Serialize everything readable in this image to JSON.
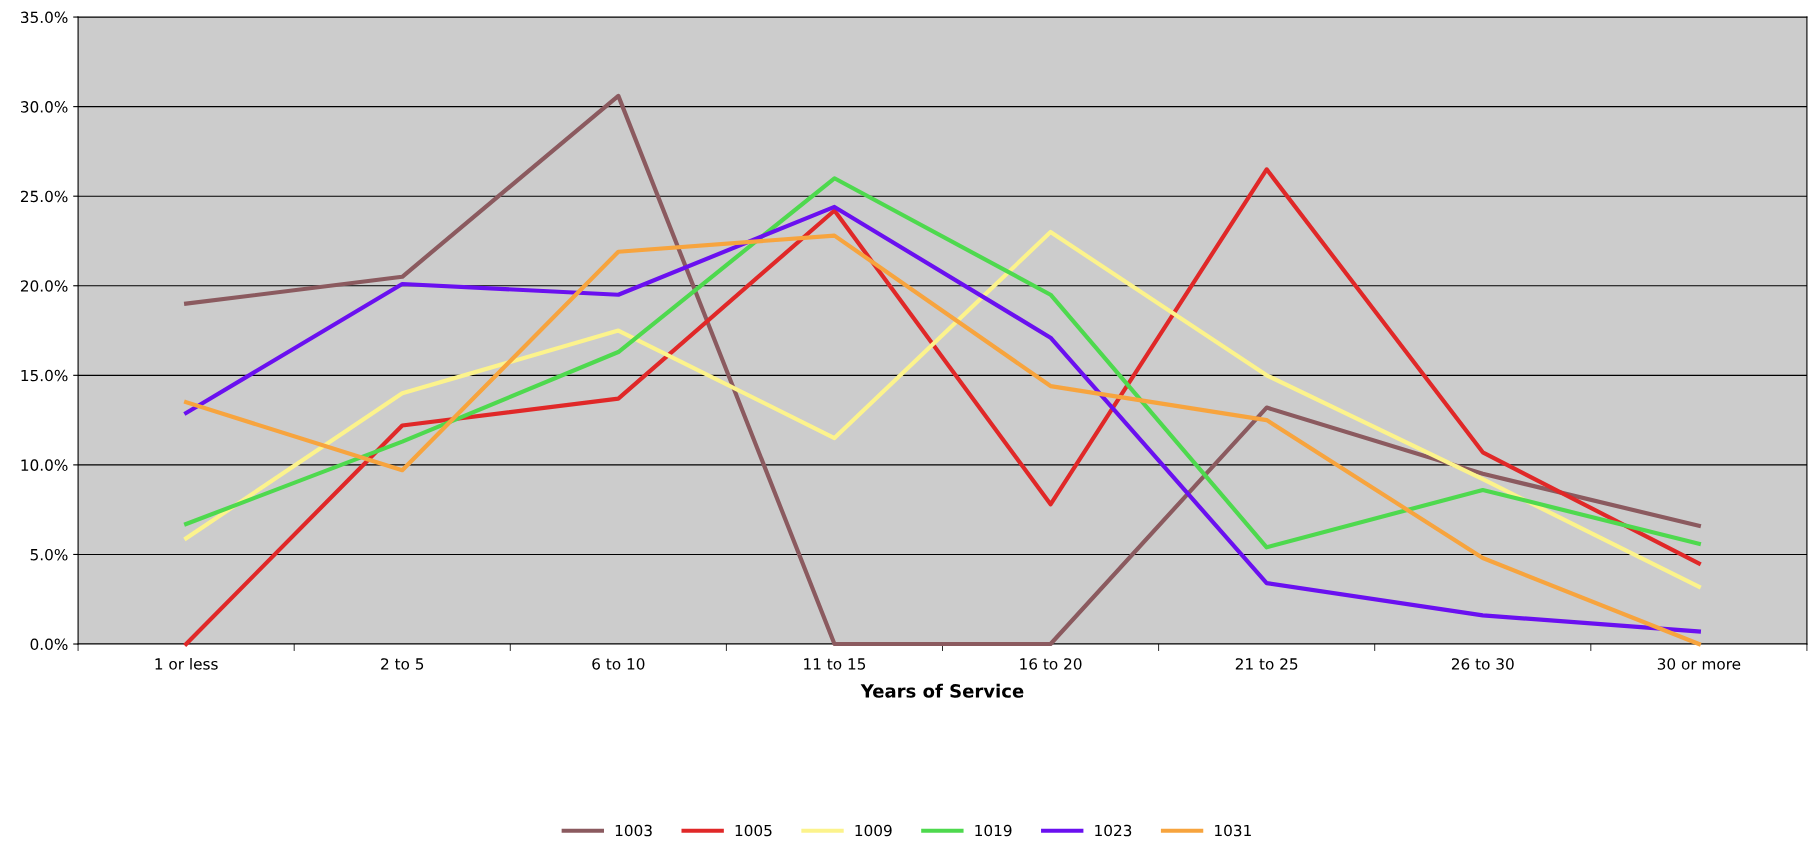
{
  "chart_data": {
    "type": "line",
    "xlabel": "Years of Service",
    "categories": [
      "1 or less",
      "2 to 5",
      "6 to 10",
      "11 to 15",
      "16 to 20",
      "21 to 25",
      "26 to 30",
      "30 or more"
    ],
    "series": [
      {
        "name": "1003",
        "color": "#8b5a5f",
        "values": [
          19.0,
          20.5,
          30.6,
          0.0,
          0.0,
          13.2,
          9.5,
          6.6
        ]
      },
      {
        "name": "1005",
        "color": "#e02828",
        "values": [
          0.0,
          12.2,
          13.7,
          24.2,
          7.8,
          26.5,
          10.7,
          4.5
        ]
      },
      {
        "name": "1009",
        "color": "#fcf38c",
        "values": [
          5.9,
          14.0,
          17.5,
          11.5,
          23.0,
          15.0,
          9.2,
          3.2
        ]
      },
      {
        "name": "1019",
        "color": "#4ed94e",
        "values": [
          6.7,
          11.3,
          16.3,
          26.0,
          19.5,
          5.4,
          8.6,
          5.6
        ]
      },
      {
        "name": "1023",
        "color": "#6a10f0",
        "values": [
          12.9,
          20.1,
          19.5,
          24.4,
          17.1,
          3.4,
          1.6,
          0.7
        ]
      },
      {
        "name": "1031",
        "color": "#f7a43e",
        "values": [
          13.5,
          9.7,
          21.9,
          22.8,
          14.4,
          12.5,
          4.8,
          0.0
        ]
      }
    ],
    "ylim": [
      0,
      35
    ],
    "yticks": [
      {
        "value": 0,
        "label": "0.0%"
      },
      {
        "value": 5,
        "label": "5.0%"
      },
      {
        "value": 10,
        "label": "10.0%"
      },
      {
        "value": 15,
        "label": "15.0%"
      },
      {
        "value": 20,
        "label": "20.0%"
      },
      {
        "value": 25,
        "label": "25.0%"
      },
      {
        "value": 30,
        "label": "30.0%"
      },
      {
        "value": 35,
        "label": "35.0%"
      }
    ],
    "grid": "y",
    "legend": "bottom",
    "marker": "none",
    "line_style": "solid"
  }
}
